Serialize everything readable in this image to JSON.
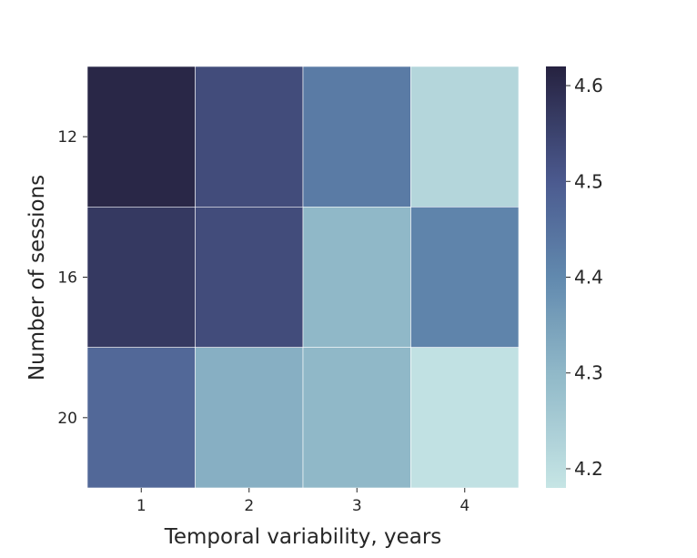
{
  "chart_data": {
    "type": "heatmap",
    "title": "",
    "xlabel": "Temporal variability, years",
    "ylabel": "Number of sessions",
    "x_categories": [
      "1",
      "2",
      "3",
      "4"
    ],
    "y_categories": [
      "12",
      "16",
      "20"
    ],
    "values": [
      [
        4.61,
        4.53,
        4.43,
        4.22
      ],
      [
        4.57,
        4.53,
        4.3,
        4.41
      ],
      [
        4.47,
        4.32,
        4.3,
        4.19
      ]
    ],
    "colorbar": {
      "range": [
        4.18,
        4.62
      ],
      "ticks": [
        "4.2",
        "4.3",
        "4.4",
        "4.5",
        "4.6"
      ],
      "colormap_stops": [
        {
          "v": 4.18,
          "color": "#c6e5e5"
        },
        {
          "v": 4.3,
          "color": "#90b8c8"
        },
        {
          "v": 4.4,
          "color": "#6189ae"
        },
        {
          "v": 4.5,
          "color": "#4b5a8f"
        },
        {
          "v": 4.62,
          "color": "#262240"
        }
      ]
    },
    "grid": false,
    "legend": "colorbar-right"
  }
}
